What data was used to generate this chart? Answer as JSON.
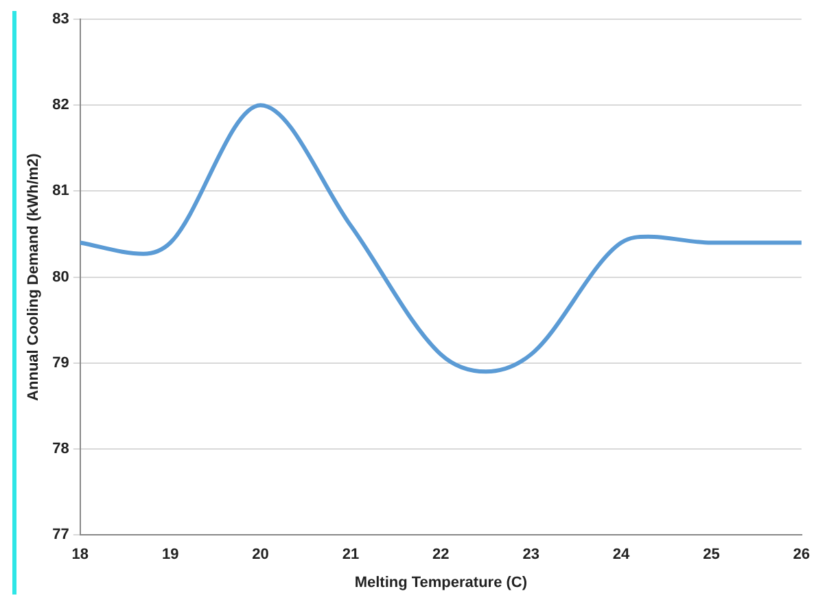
{
  "chart_data": {
    "type": "line",
    "xlabel": "Melting Temperature (C)",
    "ylabel": "Annual Cooling Demand (kWh/m2)",
    "x": [
      18,
      18.7,
      19,
      20,
      21,
      22,
      22.5,
      23,
      24,
      24.3,
      25,
      26
    ],
    "series": [
      {
        "color": "#5b9bd5",
        "values": [
          80.4,
          80.27,
          80.4,
          82.0,
          80.6,
          79.1,
          78.9,
          79.1,
          80.4,
          80.47,
          80.4,
          80.4
        ]
      }
    ],
    "xlim": [
      18,
      26
    ],
    "xticks": [
      18,
      19,
      20,
      21,
      22,
      23,
      24,
      25,
      26
    ],
    "ylim": [
      77,
      83
    ],
    "yticks": [
      77,
      78,
      79,
      80,
      81,
      82,
      83
    ],
    "grid": "y",
    "legend": false,
    "marker": "none",
    "line_style": "solid"
  }
}
